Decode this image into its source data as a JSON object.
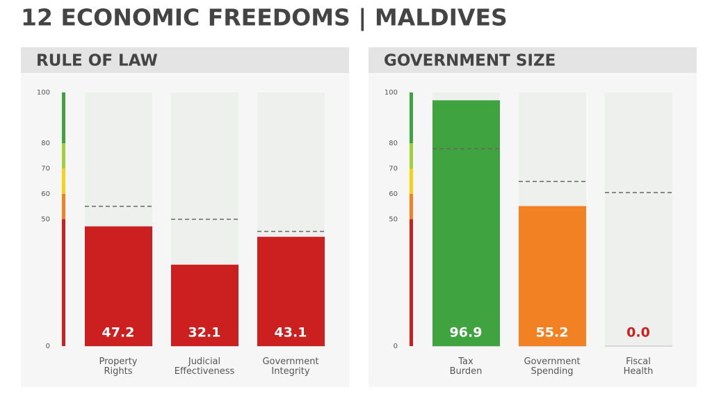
{
  "header": {
    "title": "12 ECONOMIC FREEDOMS | MALDIVES"
  },
  "chart_data": [
    {
      "type": "bar",
      "title": "RULE OF LAW",
      "categories": [
        "Property Rights",
        "Judicial Effectiveness",
        "Government Integrity"
      ],
      "values": [
        47.2,
        32.1,
        43.1
      ],
      "value_labels": [
        "47.2",
        "32.1",
        "43.1"
      ],
      "colors": [
        "#cc1f1f",
        "#cc1f1f",
        "#cc1f1f"
      ],
      "averages": [
        55.1,
        50,
        45.2
      ],
      "ylim": [
        0,
        100
      ],
      "yticks": [
        0,
        50,
        60,
        70,
        80,
        100
      ],
      "bands": [
        {
          "from": 0,
          "to": 50,
          "color": "#cc1f1f"
        },
        {
          "from": 50,
          "to": 60,
          "color": "#f28123"
        },
        {
          "from": 60,
          "to": 70,
          "color": "#f7d117"
        },
        {
          "from": 70,
          "to": 80,
          "color": "#a4cf3c"
        },
        {
          "from": 80,
          "to": 100,
          "color": "#3fa33f"
        }
      ]
    },
    {
      "type": "bar",
      "title": "GOVERNMENT SIZE",
      "categories": [
        "Tax Burden",
        "Government Spending",
        "Fiscal Health"
      ],
      "values": [
        96.9,
        55.2,
        0.0
      ],
      "value_labels": [
        "96.9",
        "55.2",
        "0.0"
      ],
      "colors": [
        "#3fa33f",
        "#f28123",
        "#cc1f1f"
      ],
      "averages": [
        77.8,
        64.9,
        60.5
      ],
      "ylim": [
        0,
        100
      ],
      "yticks": [
        0,
        50,
        60,
        70,
        80,
        100
      ],
      "bands": [
        {
          "from": 0,
          "to": 50,
          "color": "#cc1f1f"
        },
        {
          "from": 50,
          "to": 60,
          "color": "#f28123"
        },
        {
          "from": 60,
          "to": 70,
          "color": "#f7d117"
        },
        {
          "from": 70,
          "to": 80,
          "color": "#a4cf3c"
        },
        {
          "from": 80,
          "to": 100,
          "color": "#3fa33f"
        }
      ]
    }
  ]
}
